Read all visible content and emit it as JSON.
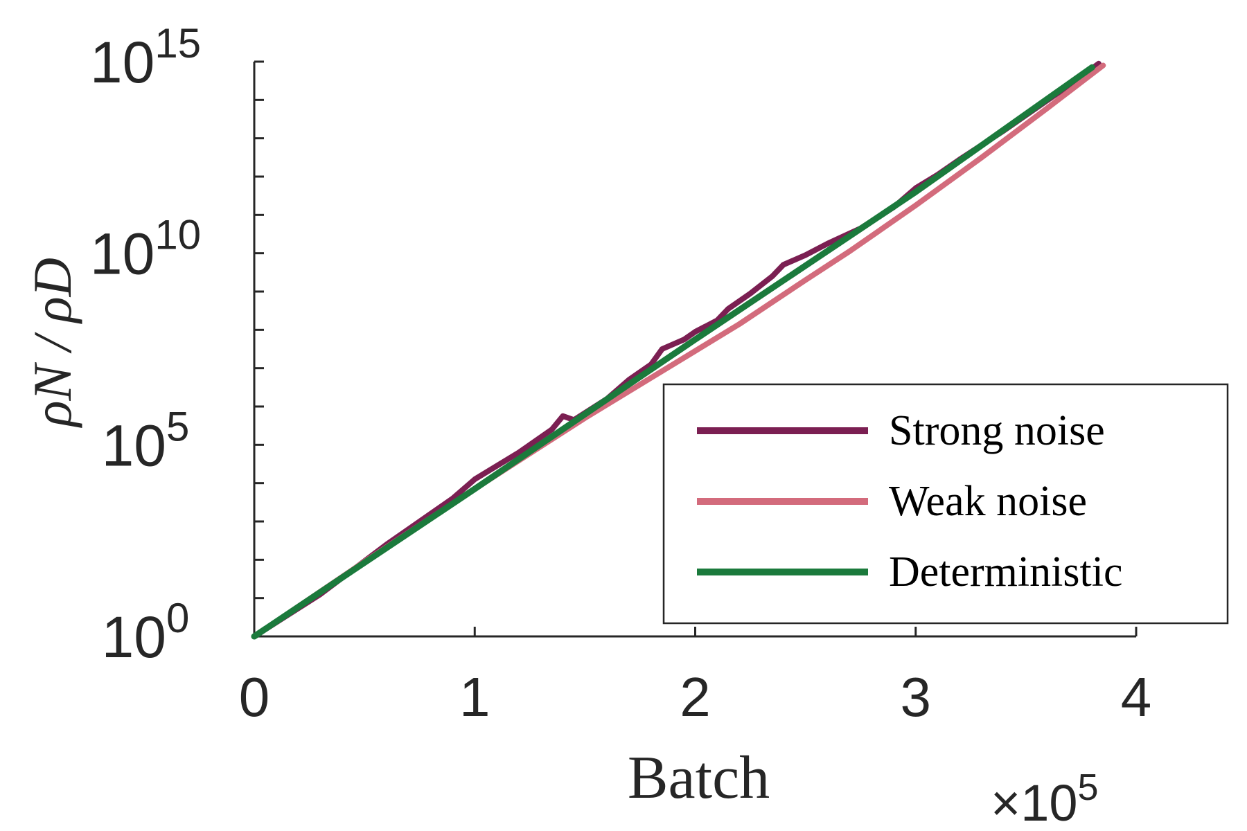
{
  "chart_data": {
    "type": "line",
    "xlabel": "Batch",
    "ylabel": "ρN / ρD",
    "x_multiplier": "×10",
    "x_multiplier_exp": "5",
    "xlim": [
      0,
      400000
    ],
    "ylim_log10": [
      0,
      15
    ],
    "y_scale": "log",
    "x_ticks": [
      {
        "value": 0,
        "label": "0"
      },
      {
        "value": 100000,
        "label": "1"
      },
      {
        "value": 200000,
        "label": "2"
      },
      {
        "value": 300000,
        "label": "3"
      },
      {
        "value": 400000,
        "label": "4"
      }
    ],
    "y_ticks": [
      {
        "value": 1,
        "base": "10",
        "exp": "0"
      },
      {
        "value": 100000,
        "base": "10",
        "exp": "5"
      },
      {
        "value": 10000000000,
        "base": "10",
        "exp": "10"
      },
      {
        "value": 1000000000000000,
        "base": "10",
        "exp": "15"
      }
    ],
    "grid": false,
    "legend_position": "bottom-right",
    "series": [
      {
        "name": "Strong noise",
        "color": "#7b1f52",
        "points": [
          [
            0,
            0
          ],
          [
            30000,
            1.1
          ],
          [
            60000,
            2.4
          ],
          [
            90000,
            3.6
          ],
          [
            100000,
            4.1
          ],
          [
            120000,
            4.8
          ],
          [
            135000,
            5.4
          ],
          [
            140000,
            5.75
          ],
          [
            145000,
            5.65
          ],
          [
            160000,
            6.2
          ],
          [
            170000,
            6.7
          ],
          [
            180000,
            7.1
          ],
          [
            185000,
            7.5
          ],
          [
            195000,
            7.75
          ],
          [
            200000,
            7.95
          ],
          [
            210000,
            8.25
          ],
          [
            215000,
            8.55
          ],
          [
            225000,
            8.95
          ],
          [
            235000,
            9.4
          ],
          [
            240000,
            9.7
          ],
          [
            250000,
            9.95
          ],
          [
            260000,
            10.25
          ],
          [
            275000,
            10.65
          ],
          [
            290000,
            11.2
          ],
          [
            300000,
            11.7
          ],
          [
            310000,
            12.05
          ],
          [
            320000,
            12.45
          ],
          [
            340000,
            13.2
          ],
          [
            355000,
            13.8
          ],
          [
            370000,
            14.4
          ],
          [
            383000,
            14.95
          ]
        ]
      },
      {
        "name": "Weak noise",
        "color": "#d36b7c",
        "points": [
          [
            0,
            0
          ],
          [
            50000,
            1.95
          ],
          [
            100000,
            3.85
          ],
          [
            150000,
            5.7
          ],
          [
            180000,
            6.75
          ],
          [
            200000,
            7.45
          ],
          [
            220000,
            8.15
          ],
          [
            250000,
            9.3
          ],
          [
            270000,
            10.05
          ],
          [
            300000,
            11.25
          ],
          [
            330000,
            12.5
          ],
          [
            360000,
            13.8
          ],
          [
            385000,
            14.9
          ]
        ]
      },
      {
        "name": "Deterministic",
        "color": "#1b7a3c",
        "points": [
          [
            0,
            0
          ],
          [
            100000,
            3.85
          ],
          [
            200000,
            7.75
          ],
          [
            300000,
            11.6
          ],
          [
            380000,
            14.85
          ]
        ]
      }
    ]
  }
}
